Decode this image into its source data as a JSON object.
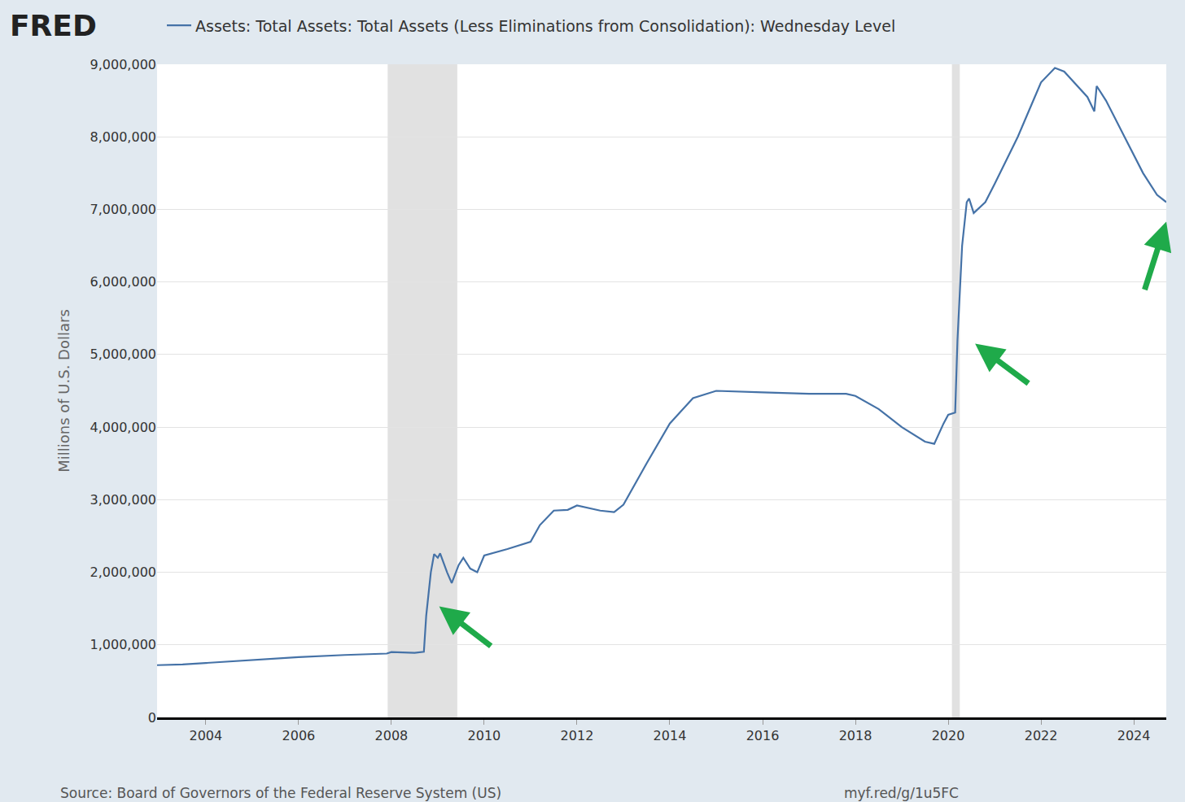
{
  "chart_data": {
    "type": "line",
    "logo": "FRED",
    "title": "Assets: Total Assets: Total Assets (Less Eliminations from Consolidation): Wednesday Level",
    "y_label": "Millions of U.S. Dollars",
    "source": "Source: Board of Governors of the Federal Reserve System (US)",
    "link": "myf.red/g/1u5FC",
    "legend": "top",
    "grid": true,
    "x": [
      2002.95,
      2003.5,
      2004,
      2005,
      2006,
      2007,
      2007.9,
      2008.0,
      2008.5,
      2008.7,
      2008.75,
      2008.85,
      2008.92,
      2009.0,
      2009.05,
      2009.2,
      2009.3,
      2009.45,
      2009.55,
      2009.7,
      2009.85,
      2010.0,
      2010.5,
      2011.0,
      2011.2,
      2011.5,
      2011.8,
      2012.0,
      2012.5,
      2012.8,
      2013.0,
      2013.5,
      2014.0,
      2014.5,
      2015.0,
      2016.0,
      2017.0,
      2017.8,
      2018.0,
      2018.5,
      2019.0,
      2019.5,
      2019.7,
      2019.9,
      2020.0,
      2020.15,
      2020.2,
      2020.3,
      2020.4,
      2020.45,
      2020.55,
      2020.8,
      2021.0,
      2021.5,
      2022.0,
      2022.3,
      2022.5,
      2023.0,
      2023.15,
      2023.2,
      2023.4,
      2023.8,
      2024.2,
      2024.5,
      2024.7
    ],
    "series": [
      {
        "name": "Assets: Total Assets: Total Assets (Less Eliminations from Consolidation): Wednesday Level",
        "color": "#4572a7",
        "values": [
          720000,
          730000,
          750000,
          790000,
          830000,
          860000,
          880000,
          900000,
          890000,
          905000,
          1400000,
          2000000,
          2250000,
          2200000,
          2260000,
          2000000,
          1850000,
          2100000,
          2200000,
          2050000,
          2000000,
          2230000,
          2320000,
          2420000,
          2650000,
          2850000,
          2860000,
          2920000,
          2850000,
          2830000,
          2930000,
          3500000,
          4050000,
          4400000,
          4500000,
          4480000,
          4460000,
          4460000,
          4430000,
          4250000,
          4000000,
          3800000,
          3770000,
          4050000,
          4170000,
          4200000,
          5200000,
          6500000,
          7100000,
          7150000,
          6950000,
          7100000,
          7350000,
          8000000,
          8750000,
          8950000,
          8900000,
          8550000,
          8350000,
          8700000,
          8500000,
          8000000,
          7500000,
          7200000,
          7100000
        ]
      }
    ],
    "recessions": [
      [
        2007.92,
        2009.42
      ],
      [
        2020.08,
        2020.25
      ]
    ],
    "arrows": {
      "color": "#1faa4a",
      "points": [
        {
          "x": 2009.03,
          "y": 1530000
        },
        {
          "x": 2020.58,
          "y": 5150000
        },
        {
          "x": 2024.7,
          "y": 6830000
        }
      ]
    },
    "xlim": [
      2002.95,
      2024.7
    ],
    "xticks": [
      2004,
      2006,
      2008,
      2010,
      2012,
      2014,
      2016,
      2018,
      2020,
      2022,
      2024
    ],
    "ylim": [
      0,
      9000000
    ],
    "yticks": [
      0,
      {
        "value": 1000000,
        "label": "1,000,000"
      },
      {
        "value": 2000000,
        "label": "2,000,000"
      },
      {
        "value": 3000000,
        "label": "3,000,000"
      },
      {
        "value": 4000000,
        "label": "4,000,000"
      },
      {
        "value": 5000000,
        "label": "5,000,000"
      },
      {
        "value": 6000000,
        "label": "6,000,000"
      },
      {
        "value": 7000000,
        "label": "7,000,000"
      },
      {
        "value": 8000000,
        "label": "8,000,000"
      },
      {
        "value": 9000000,
        "label": "9,000,000"
      }
    ]
  }
}
